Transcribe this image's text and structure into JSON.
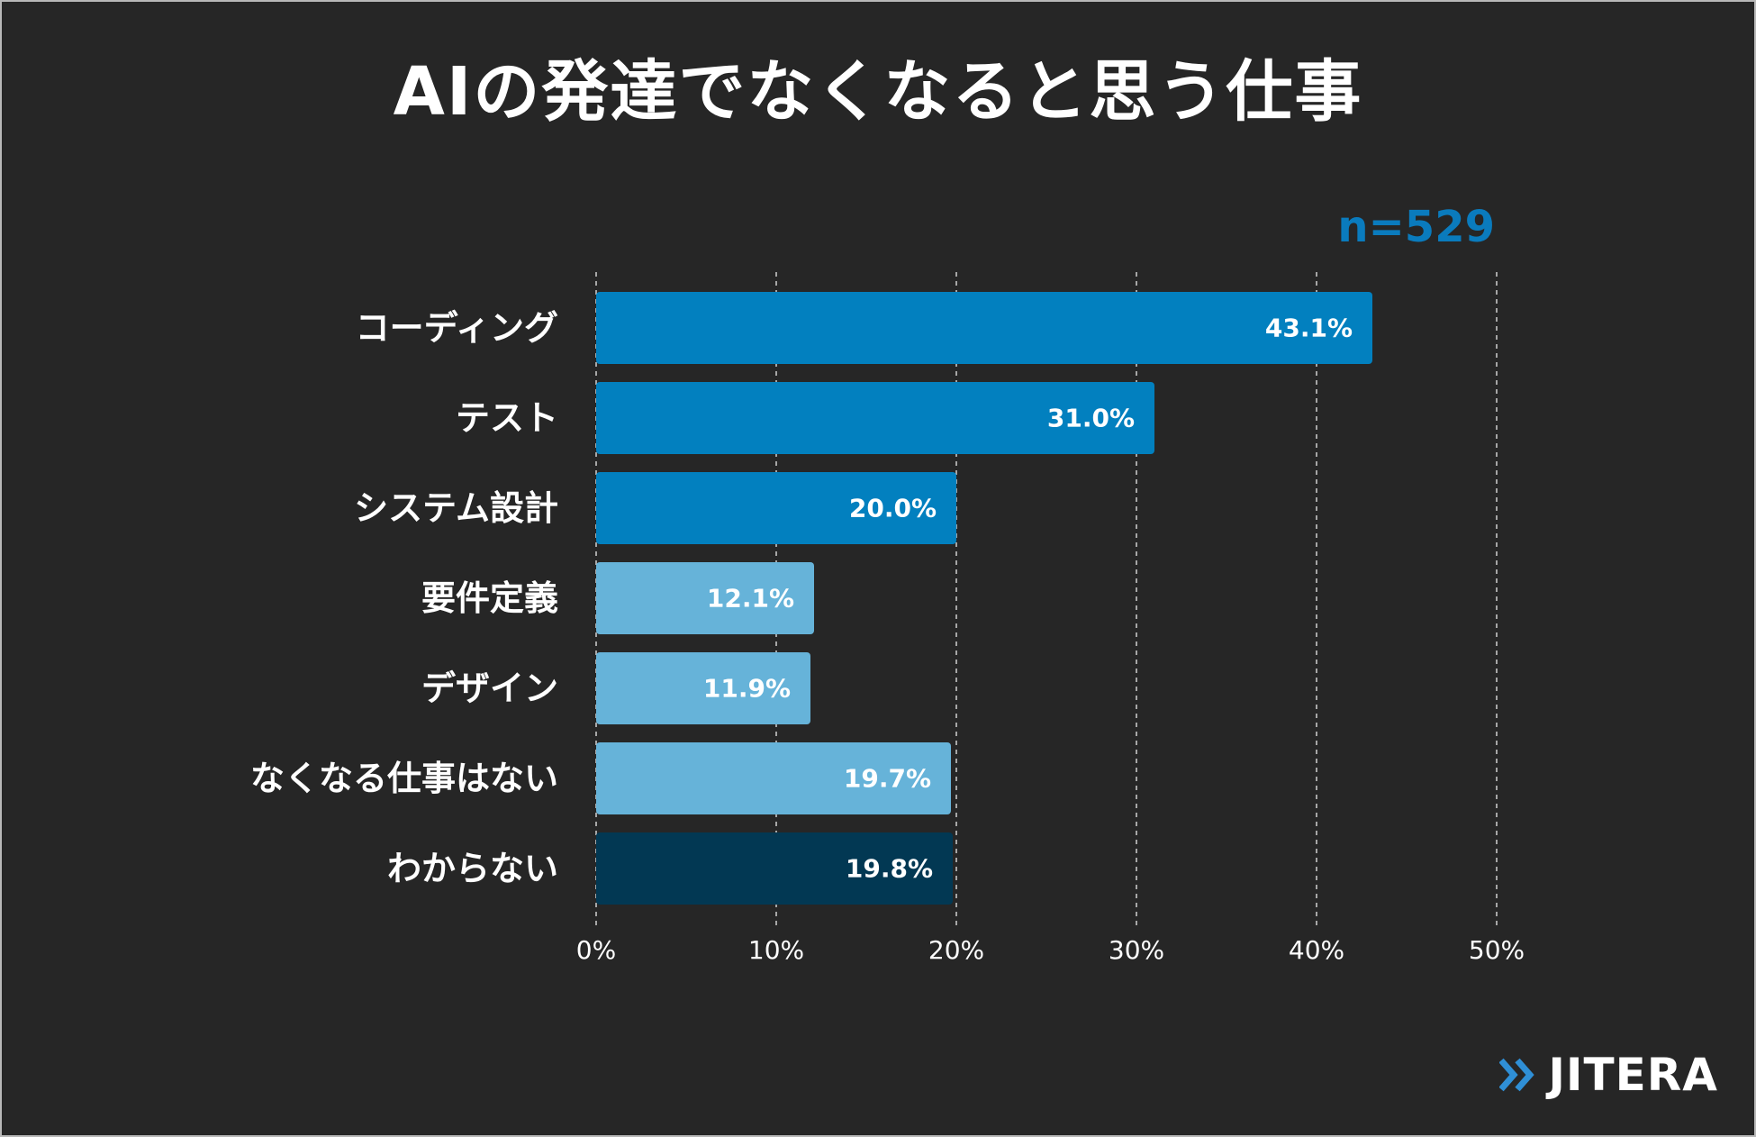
{
  "chart_data": {
    "type": "bar",
    "orientation": "horizontal",
    "title": "AIの発達でなくなると思う仕事",
    "sample_size_label": "n=529",
    "categories": [
      "コーディング",
      "テスト",
      "システム設計",
      "要件定義",
      "デザイン",
      "なくなる仕事はない",
      "わからない"
    ],
    "values": [
      43.1,
      31.0,
      20.0,
      12.1,
      11.9,
      19.7,
      19.8
    ],
    "value_labels": [
      "43.1%",
      "31.0%",
      "20.0%",
      "12.1%",
      "11.9%",
      "19.7%",
      "19.8%"
    ],
    "bar_colors": [
      "#0280bf",
      "#0280bf",
      "#0280bf",
      "#66b3d9",
      "#66b3d9",
      "#66b3d9",
      "#023853"
    ],
    "xlim": [
      0,
      50
    ],
    "ticks": [
      0,
      10,
      20,
      30,
      40,
      50
    ],
    "tick_labels": [
      "0%",
      "10%",
      "20%",
      "30%",
      "40%",
      "50%"
    ],
    "xlabel": "",
    "ylabel": "",
    "grid": "vertical dashed"
  },
  "brand": {
    "name": "JITERA",
    "icon": "double-chevron-right-icon",
    "accent_color": "#2f8fd6"
  },
  "colors": {
    "background": "#262626",
    "text": "#ffffff",
    "sample_label": "#0a7bbd",
    "grid": "#d0d0d0"
  }
}
